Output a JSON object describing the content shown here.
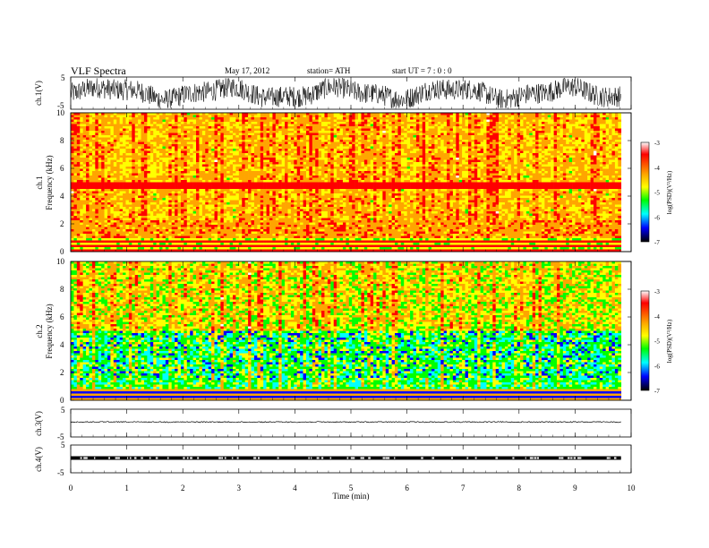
{
  "header": {
    "title": "VLF  Spectra",
    "date": "May 17, 2012",
    "station": "station= ATH",
    "start": "start  UT  =   7  : 0  : 0"
  },
  "chart_data": [
    {
      "type": "line",
      "ylabel": "ch.1(V)",
      "ylim": [
        -5,
        5
      ],
      "yticks": [
        "5",
        "-5"
      ],
      "xlim": [
        0,
        10
      ],
      "description_of_trace": "noisy black waveform oscillating within about +-4 V"
    },
    {
      "type": "heatmap",
      "ylabel_top": "ch.1",
      "ylabel": "Frequency  (kHz)",
      "ylim": [
        0,
        10
      ],
      "yticks": [
        "0",
        "2",
        "4",
        "6",
        "8",
        "10"
      ],
      "xlim": [
        0,
        10
      ],
      "colorbar": {
        "label": "log(PSD)(V²/Hz)",
        "ticks": [
          "-3",
          "-4",
          "-5",
          "-6",
          "-7"
        ],
        "range": [
          -7,
          -3
        ]
      }
    },
    {
      "type": "heatmap",
      "ylabel_top": "ch.2",
      "ylabel": "Frequency  (kHz)",
      "ylim": [
        0,
        10
      ],
      "yticks": [
        "0",
        "2",
        "4",
        "6",
        "8",
        "10"
      ],
      "xlim": [
        0,
        10
      ],
      "colorbar": {
        "label": "log(PSD)(V²/Hz)",
        "ticks": [
          "-3",
          "-4",
          "-5",
          "-6",
          "-7"
        ],
        "range": [
          -7,
          -3
        ]
      }
    },
    {
      "type": "line",
      "ylabel": "ch.3(V)",
      "ylim": [
        -5,
        5
      ],
      "yticks": [
        "5",
        "-5"
      ],
      "xlim": [
        0,
        10
      ]
    },
    {
      "type": "line",
      "ylabel": "ch.4(V)",
      "ylim": [
        -5,
        5
      ],
      "yticks": [
        "5",
        "-5"
      ],
      "xlim": [
        0,
        10
      ],
      "xlabel": "Time  (min)",
      "xticks": [
        "0",
        "1",
        "2",
        "3",
        "4",
        "5",
        "6",
        "7",
        "8",
        "9",
        "10"
      ]
    }
  ],
  "colors": {
    "scale": [
      "#ffffff",
      "#ff0000",
      "#ffa500",
      "#ffff00",
      "#00ff00",
      "#00ffff",
      "#0000ff",
      "#000000"
    ]
  }
}
